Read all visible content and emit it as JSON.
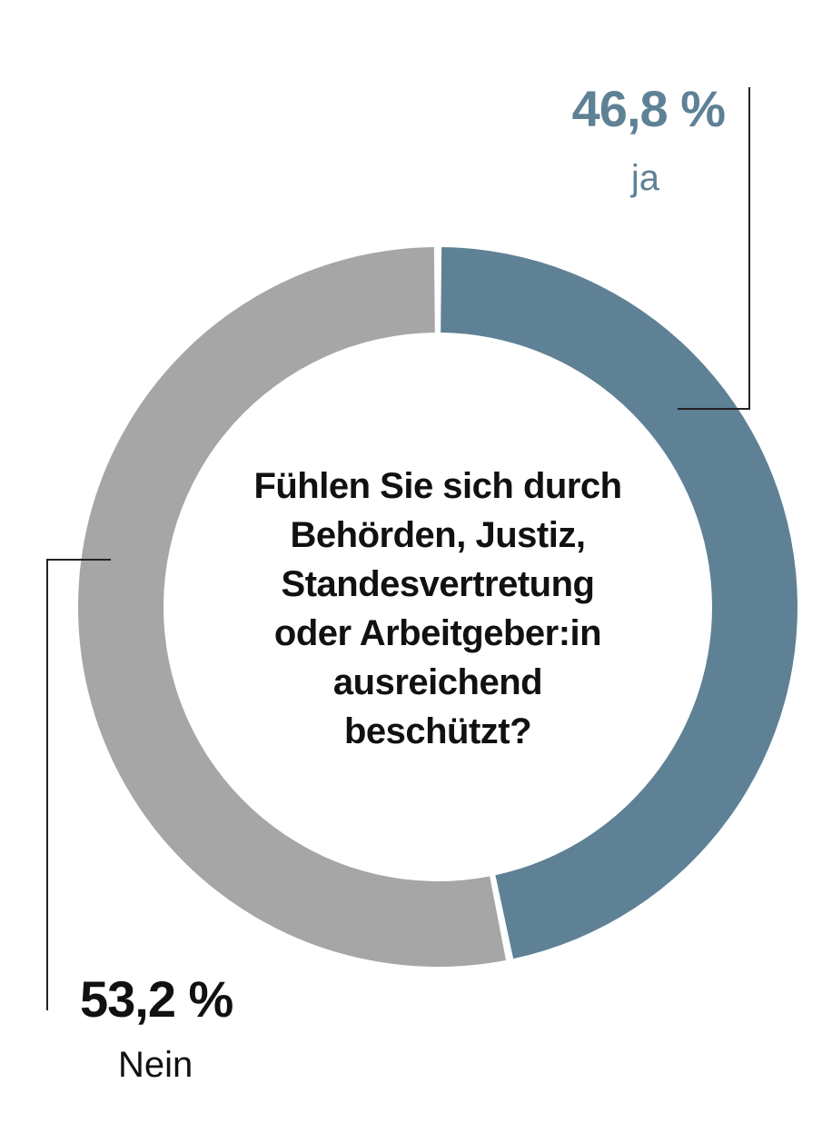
{
  "chart_data": {
    "type": "pie",
    "style": "donut",
    "title": "Fühlen Sie sich durch Behörden, Justiz, Standesvertretung oder Arbeitgeber:in ausreichend beschützt?",
    "title_lines": [
      "Fühlen Sie sich durch",
      "Behörden, Justiz,",
      "Standesvertretung",
      "oder Arbeitgeber:in",
      "ausreichend",
      "beschützt?"
    ],
    "slices": [
      {
        "key": "ja",
        "label": "ja",
        "value": 46.8,
        "value_label": "46,8 %",
        "color": "#5e8196"
      },
      {
        "key": "nein",
        "label": "Nein",
        "value": 53.2,
        "value_label": "53,2 %",
        "color": "#a6a6a6"
      }
    ],
    "unit": "%",
    "legend": "none",
    "grid": false
  },
  "colors": {
    "ja_text": "#5e8196",
    "nein_text": "#111111",
    "leader_line": "#222222"
  }
}
